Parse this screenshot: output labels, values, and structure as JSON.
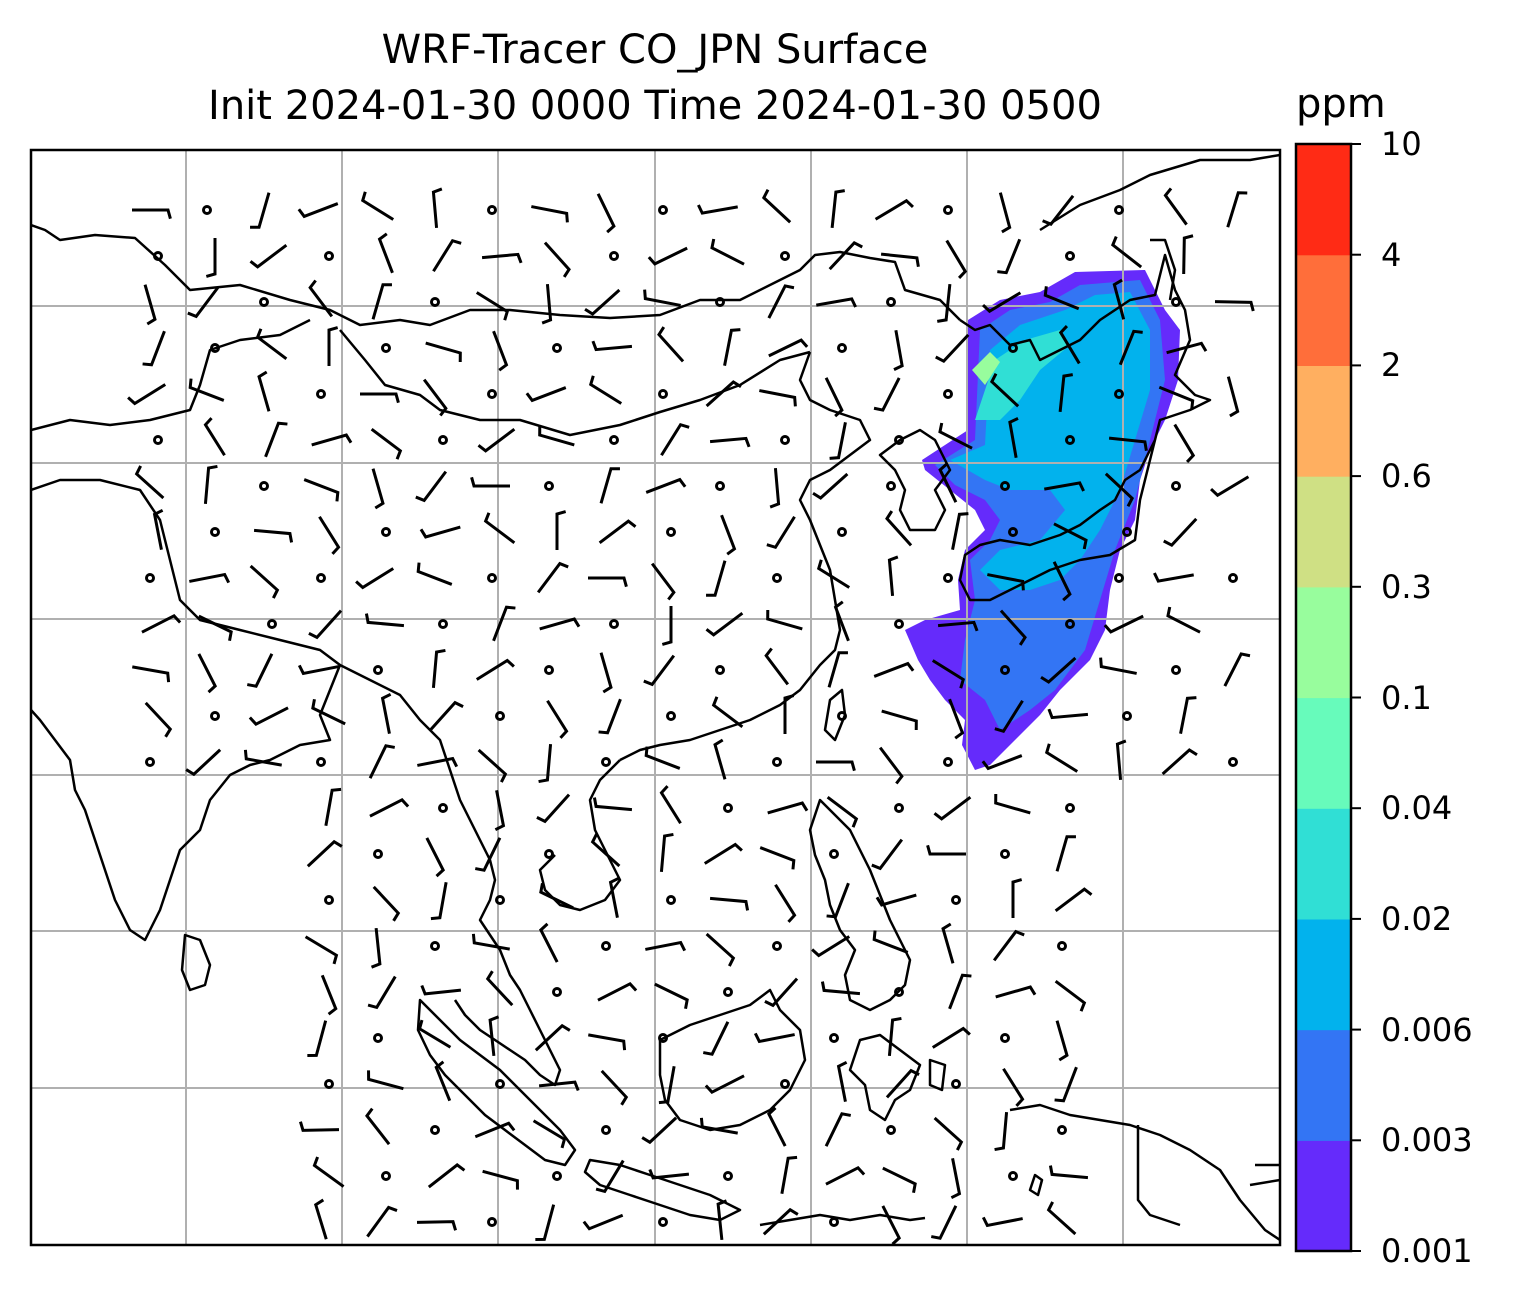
{
  "title": {
    "line1": "WRF-Tracer CO_JPN Surface",
    "line2": "Init 2024-01-30 0000 Time 2024-01-30 0500"
  },
  "colorbar": {
    "unit": "ppm",
    "levels": [
      "0.001",
      "0.003",
      "0.006",
      "0.02",
      "0.04",
      "0.1",
      "0.3",
      "0.6",
      "2",
      "4",
      "10"
    ],
    "colors": [
      "#652bfb",
      "#3375f4",
      "#02b2ed",
      "#30dfd5",
      "#67fbbb",
      "#98fd9d",
      "#cfe084",
      "#ffaf60",
      "#ff6e3a",
      "#ff2b15"
    ]
  },
  "map": {
    "gridlines": true,
    "gridline_color": "#b0b0b0",
    "coastline_color": "#000000"
  }
}
